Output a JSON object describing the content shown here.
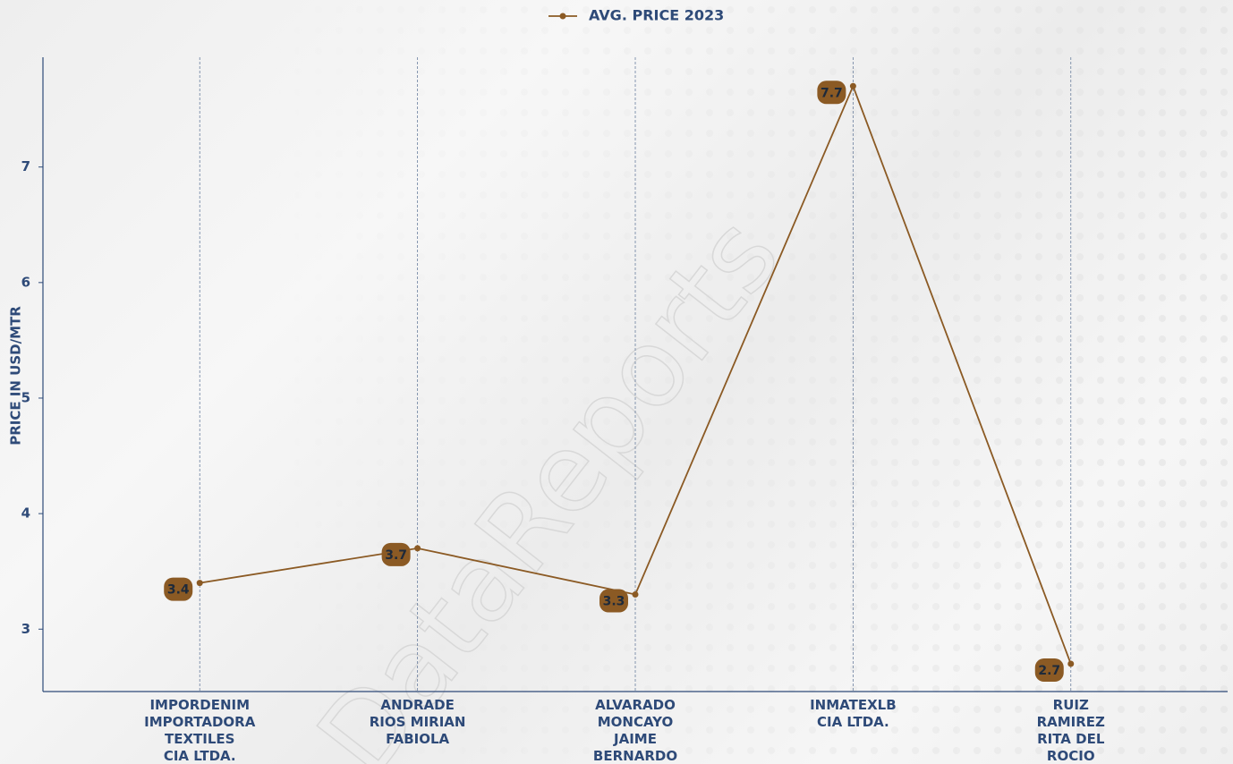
{
  "chart_data": {
    "type": "line",
    "legend_position": "top",
    "watermark": "DataReports",
    "y_label": "PRICE IN USD/MTR",
    "categories": [
      "IMPORDENIM\nIMPORTADORA\nTEXTILES\nCIA LTDA.",
      "ANDRADE\nRIOS MIRIAN\nFABIOLA",
      "ALVARADO\nMONCAYO\nJAIME\nBERNARDO",
      "INMATEXLB\nCIA LTDA.",
      "RUIZ\nRAMIREZ\nRITA DEL\nROCIO"
    ],
    "series": [
      {
        "name": "AVG. PRICE 2023",
        "color": "#8b5a24",
        "values": [
          3.4,
          3.7,
          3.3,
          7.7,
          2.7
        ]
      }
    ],
    "ylim": [
      2.46,
      7.95
    ],
    "yticks": [
      3,
      4,
      5,
      6,
      7
    ],
    "grid": "x",
    "data_labels": true
  }
}
